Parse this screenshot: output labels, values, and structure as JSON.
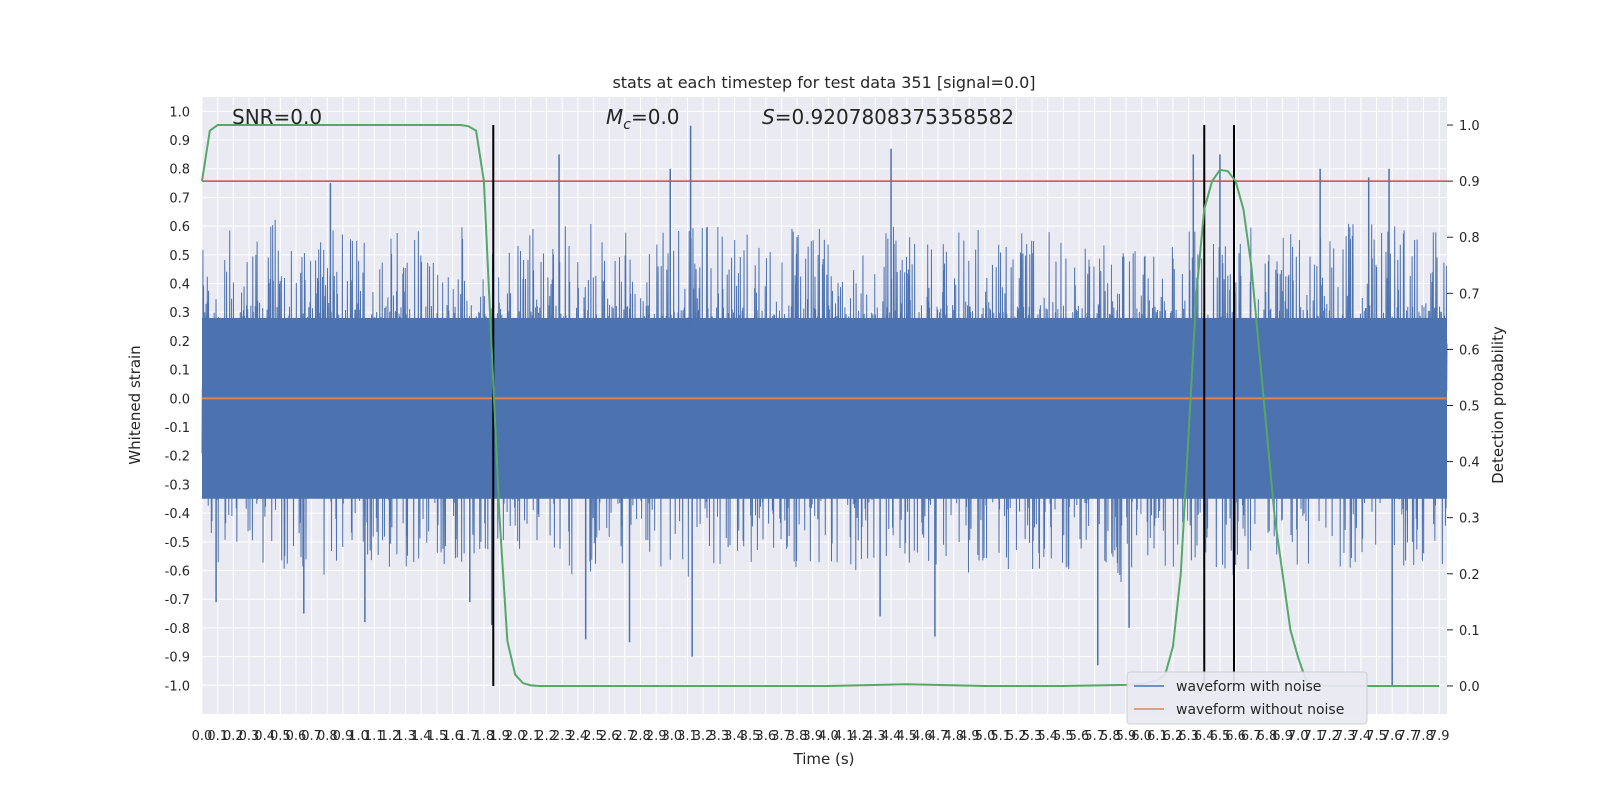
{
  "chart_data": {
    "type": "line",
    "title": "stats at each timestep for test data 351 [signal=0.0]",
    "xlabel": "Time (s)",
    "ylabel": "Whitened strain",
    "ylabel_right": "Detection probability",
    "xlim": [
      0.0,
      7.95
    ],
    "ylim": [
      -1.1,
      1.05
    ],
    "ylim_right": [
      -0.05,
      1.05
    ],
    "x_ticks": [
      "0.0",
      "0.1",
      "0.2",
      "0.3",
      "0.4",
      "0.5",
      "0.6",
      "0.7",
      "0.8",
      "0.9",
      "1.0",
      "1.1",
      "1.2",
      "1.3",
      "1.4",
      "1.5",
      "1.6",
      "1.7",
      "1.8",
      "1.9",
      "2.0",
      "2.1",
      "2.2",
      "2.3",
      "2.4",
      "2.5",
      "2.6",
      "2.7",
      "2.8",
      "2.9",
      "3.0",
      "3.1",
      "3.2",
      "3.3",
      "3.4",
      "3.5",
      "3.6",
      "3.7",
      "3.8",
      "3.9",
      "4.0",
      "4.1",
      "4.2",
      "4.3",
      "4.4",
      "4.5",
      "4.6",
      "4.7",
      "4.8",
      "4.9",
      "5.0",
      "5.1",
      "5.2",
      "5.3",
      "5.4",
      "5.5",
      "5.6",
      "5.7",
      "5.8",
      "5.9",
      "6.0",
      "6.1",
      "6.2",
      "6.3",
      "6.4",
      "6.5",
      "6.6",
      "6.7",
      "6.8",
      "6.9",
      "7.0",
      "7.1",
      "7.2",
      "7.3",
      "7.4",
      "7.5",
      "7.6",
      "7.7",
      "7.8",
      "7.9"
    ],
    "y_ticks": [
      "1.0",
      "0.9",
      "0.8",
      "0.7",
      "0.6",
      "0.5",
      "0.4",
      "0.3",
      "0.2",
      "0.1",
      "0.0",
      "-0.1",
      "-0.2",
      "-0.3",
      "-0.4",
      "-0.5",
      "-0.6",
      "-0.7",
      "-0.8",
      "-0.9",
      "-1.0"
    ],
    "y_ticks_right": [
      "1.0",
      "0.9",
      "0.8",
      "0.7",
      "0.6",
      "0.5",
      "0.4",
      "0.3",
      "0.2",
      "0.1",
      "0.0"
    ],
    "annotations": {
      "snr": "SNR=0.0",
      "mc_symbol": "M",
      "mc_sub": "c",
      "mc_value": "=0.0",
      "s_symbol": "S",
      "s_value": "=0.9207808375358582"
    },
    "series": [
      {
        "name": "waveform with noise",
        "color": "#4c72b0",
        "envelope_upper": [
          0.55,
          0.6,
          0.5,
          0.6,
          0.65,
          0.55,
          0.6,
          0.58,
          0.6,
          0.58,
          0.6,
          0.55,
          0.58,
          0.6,
          0.55,
          0.5,
          0.6,
          0.62,
          0.55,
          0.52,
          0.58,
          0.6,
          0.55,
          0.6,
          0.62,
          0.55,
          0.6,
          0.58,
          0.6,
          0.62,
          0.6,
          0.65,
          0.6,
          0.58,
          0.6,
          0.58,
          0.6,
          0.6,
          0.58,
          0.6,
          0.55,
          0.6,
          0.58,
          0.6,
          0.6,
          0.62,
          0.55,
          0.58,
          0.6,
          0.6,
          0.58,
          0.55,
          0.58,
          0.6,
          0.6,
          0.55,
          0.55,
          0.58,
          0.55,
          0.58,
          0.6,
          0.55,
          0.58,
          0.6,
          0.6,
          0.62,
          0.6,
          0.6,
          0.55,
          0.6,
          0.58,
          0.6,
          0.6,
          0.62,
          0.62,
          0.6,
          0.6,
          0.58,
          0.6,
          0.58
        ],
        "envelope_lower": [
          -0.6,
          -0.62,
          -0.58,
          -0.6,
          -0.55,
          -0.62,
          -0.6,
          -0.62,
          -0.6,
          -0.58,
          -0.62,
          -0.6,
          -0.58,
          -0.6,
          -0.55,
          -0.58,
          -0.6,
          -0.58,
          -0.6,
          -0.65,
          -0.6,
          -0.58,
          -0.6,
          -0.62,
          -0.65,
          -0.6,
          -0.58,
          -0.6,
          -0.6,
          -0.62,
          -0.6,
          -0.65,
          -0.6,
          -0.58,
          -0.6,
          -0.6,
          -0.58,
          -0.6,
          -0.58,
          -0.6,
          -0.58,
          -0.6,
          -0.6,
          -0.62,
          -0.58,
          -0.6,
          -0.6,
          -0.62,
          -0.65,
          -0.6,
          -0.58,
          -0.6,
          -0.58,
          -0.6,
          -0.58,
          -0.6,
          -0.62,
          -0.6,
          -0.65,
          -0.6,
          -0.58,
          -0.6,
          -0.62,
          -0.6,
          -0.6,
          -0.62,
          -0.62,
          -0.6,
          -0.6,
          -0.6,
          -0.58,
          -0.6,
          -0.6,
          -0.62,
          -0.6,
          -0.62,
          -0.62,
          -0.6,
          -0.6,
          -0.58
        ],
        "spikes": [
          [
            0.09,
            -0.71
          ],
          [
            0.65,
            -0.75
          ],
          [
            0.82,
            0.75
          ],
          [
            1.04,
            -0.78
          ],
          [
            1.71,
            -0.71
          ],
          [
            1.85,
            -0.79
          ],
          [
            2.28,
            0.85
          ],
          [
            2.45,
            -0.84
          ],
          [
            2.73,
            -0.85
          ],
          [
            2.99,
            0.8
          ],
          [
            3.12,
            0.95
          ],
          [
            3.13,
            -0.9
          ],
          [
            4.33,
            -0.76
          ],
          [
            4.4,
            0.87
          ],
          [
            4.68,
            -0.83
          ],
          [
            5.72,
            -0.93
          ],
          [
            5.92,
            -0.8
          ],
          [
            6.33,
            0.85
          ],
          [
            6.5,
            0.85
          ],
          [
            7.14,
            0.8
          ],
          [
            7.45,
            0.77
          ],
          [
            7.58,
            0.8
          ],
          [
            7.6,
            -1.0
          ]
        ]
      },
      {
        "name": "waveform without noise",
        "color": "#dd8452",
        "value": 0.0
      },
      {
        "name": "detection probability",
        "color": "#55a868",
        "axis": "right",
        "x": [
          0.0,
          0.05,
          0.1,
          0.5,
          1.0,
          1.5,
          1.65,
          1.7,
          1.75,
          1.8,
          1.85,
          1.9,
          1.95,
          2.0,
          2.05,
          2.1,
          2.15,
          2.2,
          2.3,
          2.5,
          3.0,
          4.0,
          4.5,
          5.0,
          5.5,
          5.9,
          6.0,
          6.1,
          6.15,
          6.2,
          6.25,
          6.3,
          6.35,
          6.4,
          6.45,
          6.5,
          6.55,
          6.6,
          6.65,
          6.7,
          6.75,
          6.8,
          6.85,
          6.9,
          6.95,
          7.0,
          7.05,
          7.1,
          7.2,
          7.5,
          7.9
        ],
        "y": [
          0.9,
          0.99,
          1.0,
          1.0,
          1.0,
          1.0,
          1.0,
          0.998,
          0.99,
          0.9,
          0.6,
          0.3,
          0.08,
          0.02,
          0.005,
          0.001,
          0.0,
          0.0,
          0.0,
          0.0,
          0.0,
          0.0,
          0.003,
          0.0,
          0.0,
          0.002,
          0.004,
          0.01,
          0.02,
          0.07,
          0.2,
          0.45,
          0.7,
          0.85,
          0.9,
          0.92,
          0.918,
          0.9,
          0.85,
          0.75,
          0.6,
          0.45,
          0.3,
          0.2,
          0.1,
          0.05,
          0.01,
          0.002,
          0.0,
          0.0,
          0.0
        ]
      }
    ],
    "threshold": {
      "value_right": 0.9,
      "color": "#c44e52"
    },
    "vertical_lines": [
      1.86,
      6.4,
      6.59
    ],
    "legend": {
      "placement": "lower-right",
      "entries": [
        "waveform with noise",
        "waveform without noise"
      ]
    },
    "grid": true,
    "background": "#eaeaf2"
  }
}
